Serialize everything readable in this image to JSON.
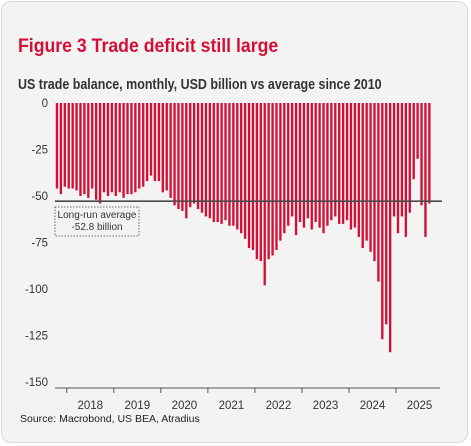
{
  "header": {
    "figure_title": "Figure 3 Trade deficit still large",
    "subtitle": "US trade balance, monthly, USD billion vs average since 2010"
  },
  "footer": {
    "source": "Source: Macrobond, US BEA, Atradius"
  },
  "colors": {
    "bar": "#d40f36",
    "average_line": "#4a4a4a",
    "title": "#d40f36",
    "background": "#f3f3f3"
  },
  "chart_data": {
    "type": "bar",
    "title": "US trade balance, monthly, USD billion vs average since 2010",
    "xlabel": "",
    "ylabel": "",
    "ylim": [
      -150,
      0
    ],
    "yticks": [
      0,
      -25,
      -50,
      -75,
      -100,
      -125,
      -150
    ],
    "ytick_labels": [
      "0",
      "-25",
      "-50",
      "-75",
      "-100",
      "-125",
      "-150"
    ],
    "x_start": "2017-10",
    "xtick_labels": [
      "2018",
      "2019",
      "2020",
      "2021",
      "2022",
      "2023",
      "2024",
      "2025"
    ],
    "grid": false,
    "legend": "none",
    "series": [
      {
        "values": [
          -46,
          -49,
          -45,
          -46,
          -46,
          -47,
          -50,
          -49,
          -51,
          -46,
          -52,
          -54,
          -48,
          -50,
          -48,
          -50,
          -48,
          -51,
          -49,
          -49,
          -48,
          -46,
          -45,
          -42,
          -39,
          -42,
          -42,
          -48,
          -47,
          -51,
          -55,
          -57,
          -58,
          -62,
          -56,
          -54,
          -57,
          -59,
          -61,
          -62,
          -64,
          -64,
          -65,
          -63,
          -66,
          -66,
          -68,
          -70,
          -73,
          -78,
          -79,
          -84,
          -85,
          -98,
          -84,
          -82,
          -79,
          -74,
          -70,
          -66,
          -61,
          -71,
          -64,
          -67,
          -62,
          -68,
          -64,
          -67,
          -70,
          -66,
          -63,
          -61,
          -65,
          -65,
          -63,
          -68,
          -67,
          -72,
          -78,
          -74,
          -80,
          -85,
          -96,
          -127,
          -119,
          -134,
          -61,
          -70,
          -61,
          -72,
          -59,
          -41,
          -30,
          -55,
          -72,
          -54
        ]
      }
    ],
    "reference_line": {
      "value": -52.8,
      "label": [
        "Long-run average",
        "-52.8 billion"
      ]
    }
  }
}
